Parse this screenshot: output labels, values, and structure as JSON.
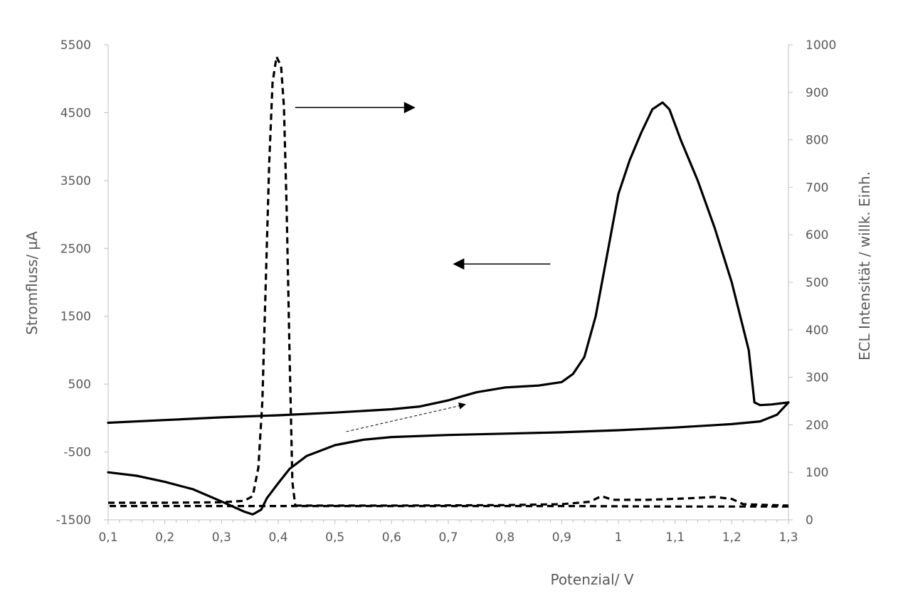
{
  "chart_data": {
    "type": "line",
    "title": "",
    "xlabel": "Potenzial/ V",
    "ylabel_left": "Stromfluss/ µA",
    "ylabel_right": "ECL Intensität / willk. Einh.",
    "xlim": [
      0.1,
      1.3
    ],
    "ylim_left": [
      -1500,
      5500
    ],
    "ylim_right": [
      0,
      1000
    ],
    "x_ticks": [
      "0,1",
      "0,2",
      "0,3",
      "0,4",
      "0,5",
      "0,6",
      "0,7",
      "0,8",
      "0,9",
      "1",
      "1,1",
      "1,2",
      "1,3"
    ],
    "y_left_ticks": [
      "5500",
      "4500",
      "3500",
      "2500",
      "1500",
      "500",
      "-500",
      "-1500"
    ],
    "y_right_ticks": [
      "1000",
      "900",
      "800",
      "700",
      "600",
      "500",
      "400",
      "300",
      "200",
      "100",
      "0"
    ],
    "grid": false,
    "legend": "none",
    "series": [
      {
        "axis": "left",
        "style": "solid",
        "points": [
          [
            1.3,
            230
          ],
          [
            1.27,
            200
          ],
          [
            1.25,
            190
          ],
          [
            1.24,
            230
          ],
          [
            1.23,
            1000
          ],
          [
            1.2,
            2000
          ],
          [
            1.17,
            2800
          ],
          [
            1.14,
            3500
          ],
          [
            1.11,
            4100
          ],
          [
            1.09,
            4550
          ],
          [
            1.078,
            4650
          ],
          [
            1.06,
            4550
          ],
          [
            1.04,
            4200
          ],
          [
            1.02,
            3800
          ],
          [
            1.0,
            3300
          ],
          [
            0.98,
            2400
          ],
          [
            0.96,
            1500
          ],
          [
            0.94,
            900
          ],
          [
            0.92,
            650
          ],
          [
            0.9,
            530
          ],
          [
            0.86,
            480
          ],
          [
            0.8,
            450
          ],
          [
            0.75,
            380
          ],
          [
            0.72,
            310
          ],
          [
            0.7,
            260
          ],
          [
            0.65,
            170
          ],
          [
            0.6,
            130
          ],
          [
            0.5,
            80
          ],
          [
            0.4,
            40
          ],
          [
            0.3,
            10
          ],
          [
            0.2,
            -30
          ],
          [
            0.1,
            -70
          ]
        ]
      },
      {
        "axis": "left",
        "style": "solid",
        "points": [
          [
            0.1,
            -800
          ],
          [
            0.15,
            -850
          ],
          [
            0.2,
            -940
          ],
          [
            0.25,
            -1050
          ],
          [
            0.3,
            -1230
          ],
          [
            0.34,
            -1380
          ],
          [
            0.355,
            -1420
          ],
          [
            0.37,
            -1350
          ],
          [
            0.38,
            -1180
          ],
          [
            0.4,
            -960
          ],
          [
            0.42,
            -750
          ],
          [
            0.45,
            -560
          ],
          [
            0.5,
            -400
          ],
          [
            0.55,
            -320
          ],
          [
            0.6,
            -280
          ],
          [
            0.7,
            -250
          ],
          [
            0.8,
            -230
          ],
          [
            0.9,
            -210
          ],
          [
            1.0,
            -180
          ],
          [
            1.1,
            -140
          ],
          [
            1.2,
            -90
          ],
          [
            1.25,
            -50
          ],
          [
            1.28,
            50
          ],
          [
            1.3,
            230
          ]
        ]
      },
      {
        "axis": "right",
        "style": "dashed",
        "points": [
          [
            0.1,
            36
          ],
          [
            0.2,
            36
          ],
          [
            0.3,
            37
          ],
          [
            0.34,
            40
          ],
          [
            0.355,
            50
          ],
          [
            0.365,
            110
          ],
          [
            0.372,
            250
          ],
          [
            0.378,
            500
          ],
          [
            0.384,
            750
          ],
          [
            0.39,
            920
          ],
          [
            0.397,
            975
          ],
          [
            0.405,
            955
          ],
          [
            0.41,
            870
          ],
          [
            0.415,
            650
          ],
          [
            0.42,
            350
          ],
          [
            0.425,
            80
          ],
          [
            0.43,
            30
          ]
        ]
      },
      {
        "axis": "right",
        "style": "dashed",
        "points": [
          [
            0.43,
            30
          ],
          [
            0.6,
            30
          ],
          [
            0.8,
            31
          ],
          [
            0.9,
            33
          ],
          [
            0.95,
            38
          ],
          [
            0.97,
            50
          ],
          [
            0.99,
            42
          ],
          [
            1.05,
            42
          ],
          [
            1.12,
            45
          ],
          [
            1.17,
            48
          ],
          [
            1.2,
            44
          ],
          [
            1.22,
            33
          ],
          [
            1.3,
            30
          ]
        ]
      },
      {
        "axis": "right",
        "style": "dashed",
        "points": [
          [
            1.3,
            28
          ],
          [
            1.1,
            28
          ],
          [
            0.9,
            29
          ],
          [
            0.7,
            29
          ],
          [
            0.5,
            29
          ],
          [
            0.3,
            29
          ],
          [
            0.1,
            29
          ]
        ]
      }
    ],
    "annotations": [
      {
        "type": "arrow",
        "style": "solid",
        "from": [
          0.43,
          4575
        ],
        "to": [
          0.64,
          4575
        ]
      },
      {
        "type": "arrow",
        "style": "solid",
        "from": [
          0.88,
          2270
        ],
        "to": [
          0.71,
          2270
        ]
      },
      {
        "type": "arrow",
        "style": "dashed",
        "from": [
          0.52,
          -200
        ],
        "to": [
          0.73,
          200
        ]
      }
    ]
  }
}
